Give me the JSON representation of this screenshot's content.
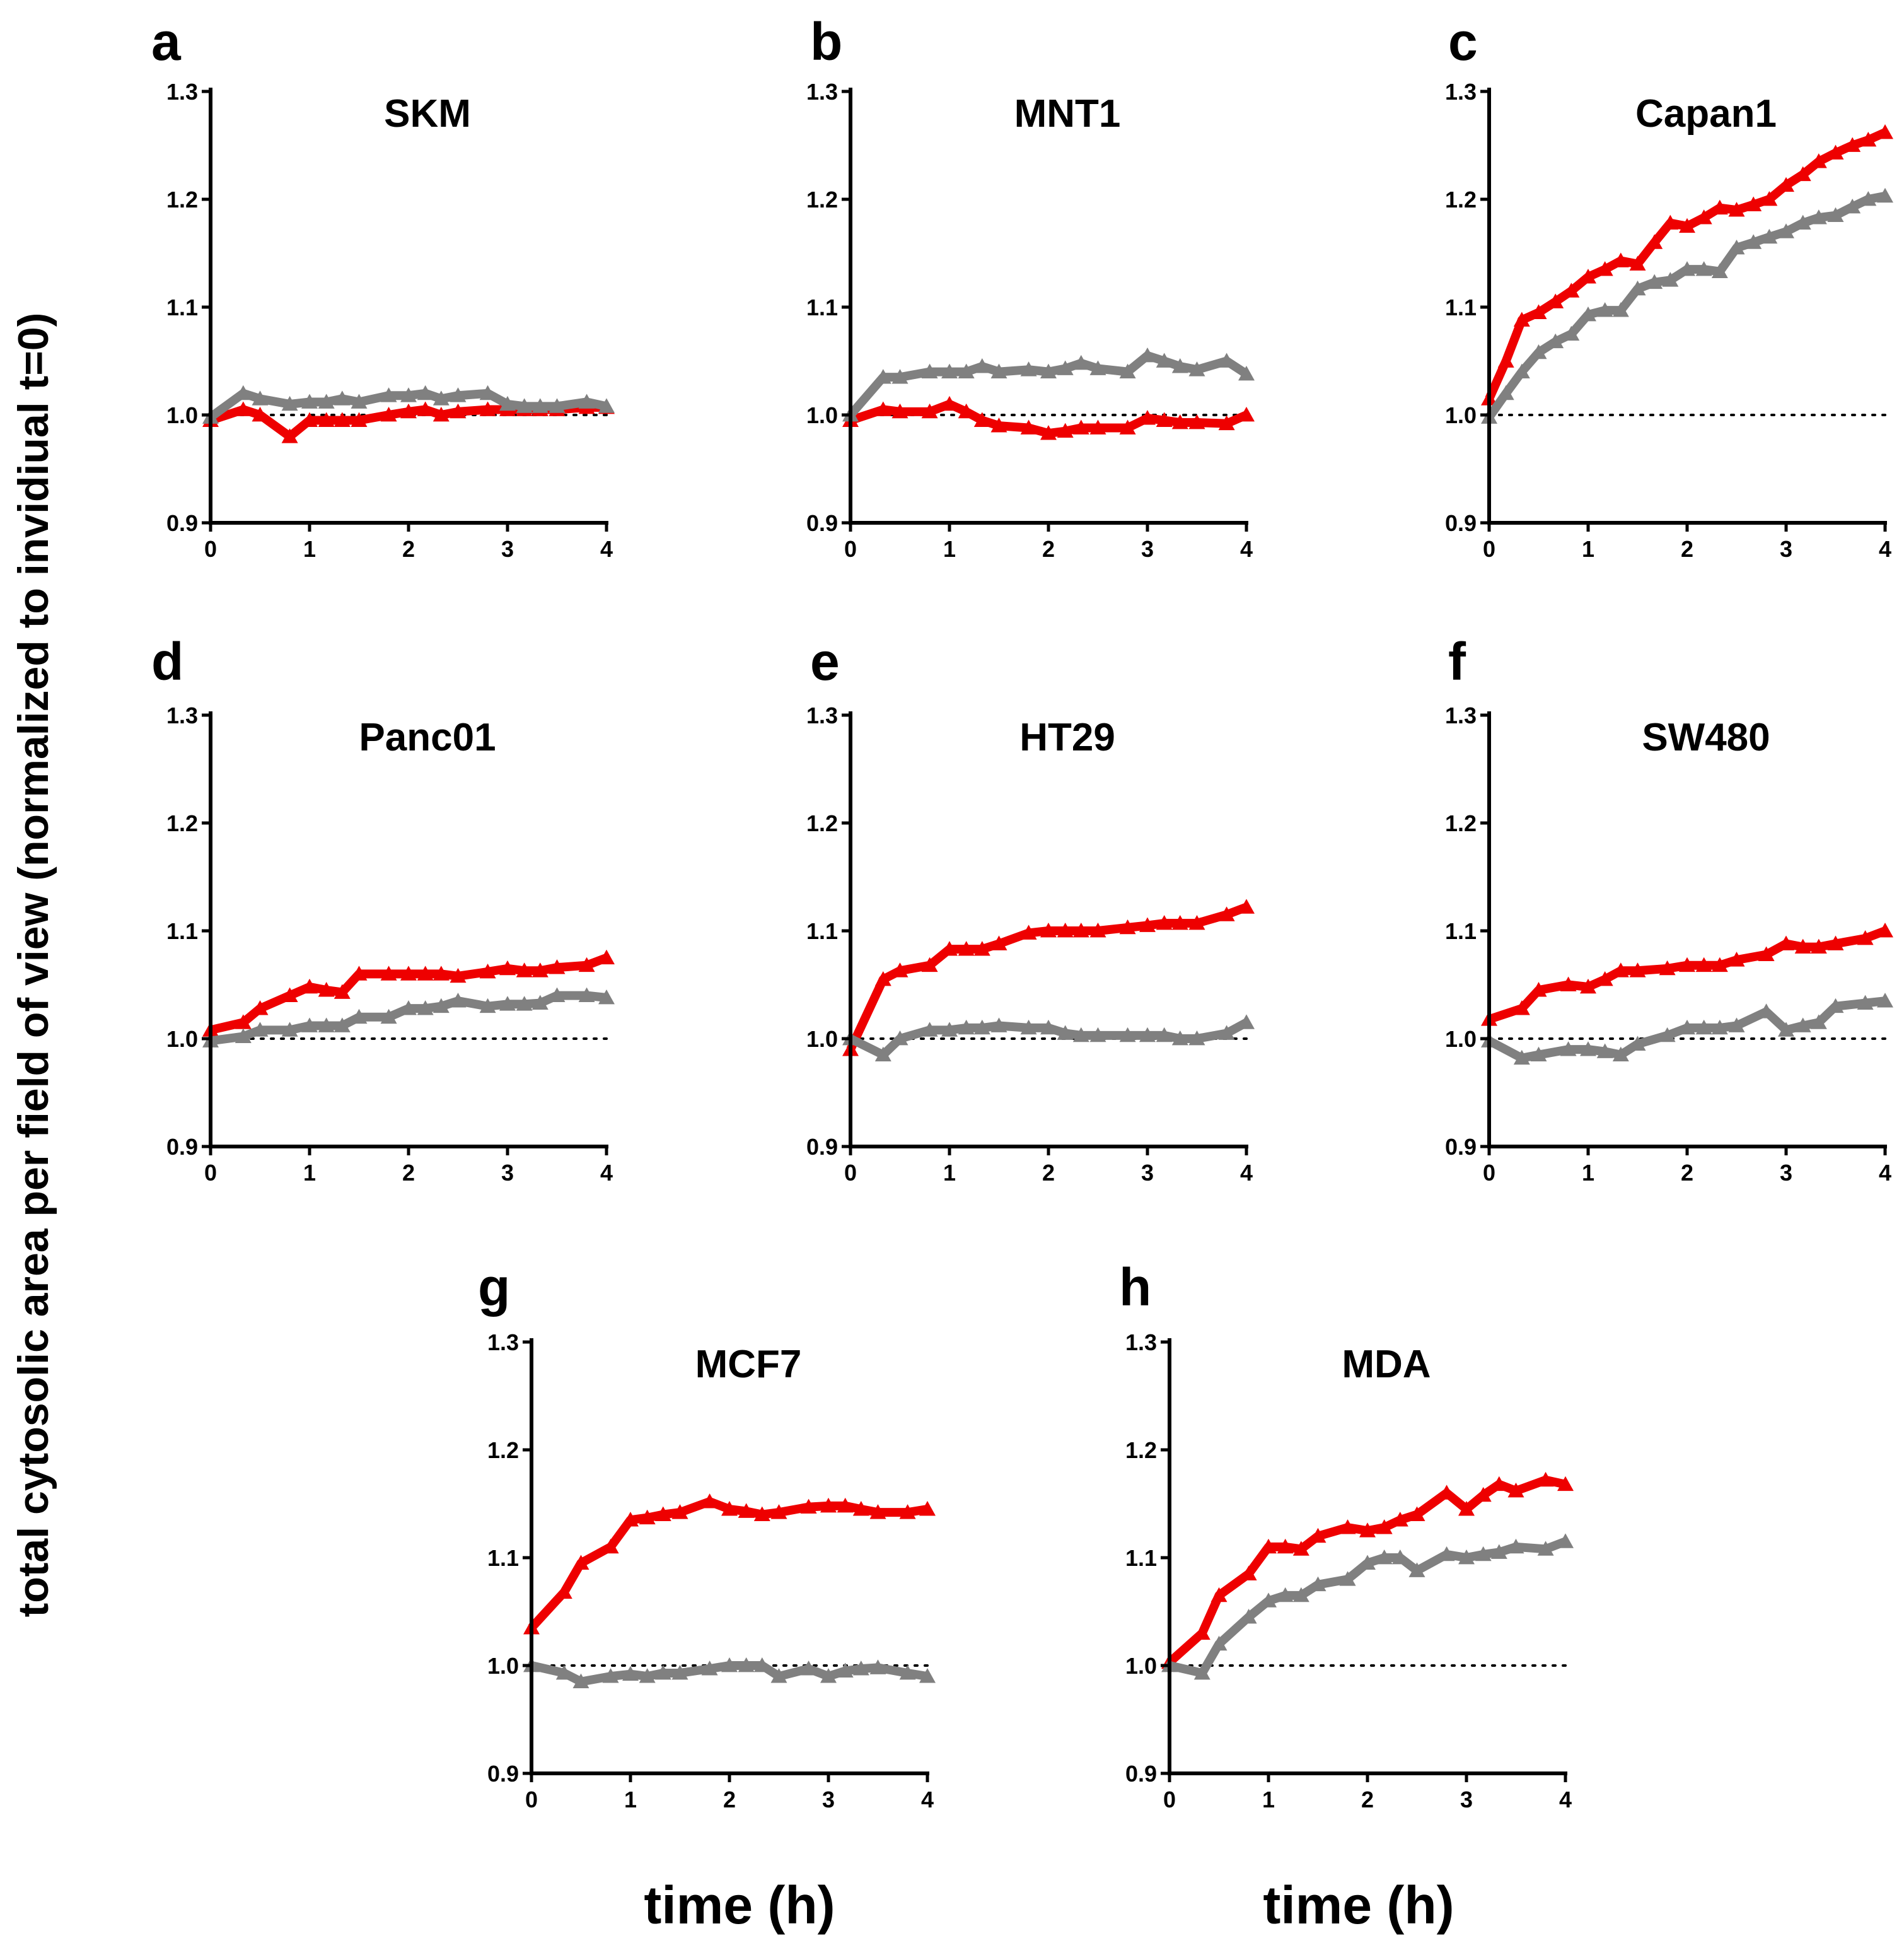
{
  "figure": {
    "ylabel": "total cytosolic area per field of view (normalized to invidiual t=0)",
    "xlabel_left": "time (h)",
    "xlabel_right": "time (h)",
    "colors": {
      "red": "#ee0000",
      "gray": "#808080",
      "axis": "#000000"
    }
  },
  "chart_data": [
    {
      "type": "line",
      "letter": "a",
      "title": "SKM",
      "xlim": [
        0,
        4
      ],
      "ylim": [
        0.9,
        1.3
      ],
      "xticks": [
        "0",
        "1",
        "2",
        "3",
        "4"
      ],
      "yticks": [
        "0.9",
        "1.0",
        "1.1",
        "1.2",
        "1.3"
      ],
      "reference_line": 1.0,
      "x": [
        0,
        0.33,
        0.5,
        0.8,
        1.0,
        1.17,
        1.33,
        1.5,
        1.8,
        2.0,
        2.17,
        2.33,
        2.5,
        2.8,
        3.0,
        3.17,
        3.33,
        3.5,
        3.8,
        4.0
      ],
      "series": [
        {
          "name": "red",
          "values": [
            0.995,
            1.005,
            1.0,
            0.98,
            0.995,
            0.995,
            0.995,
            0.995,
            1.0,
            1.003,
            1.005,
            1.0,
            1.003,
            1.005,
            1.005,
            1.005,
            1.005,
            1.005,
            1.007,
            1.007
          ]
        },
        {
          "name": "gray",
          "values": [
            0.998,
            1.02,
            1.015,
            1.01,
            1.012,
            1.012,
            1.015,
            1.012,
            1.018,
            1.018,
            1.02,
            1.015,
            1.018,
            1.02,
            1.01,
            1.008,
            1.008,
            1.008,
            1.012,
            1.008
          ]
        }
      ]
    },
    {
      "type": "line",
      "letter": "b",
      "title": "MNT1",
      "xlim": [
        0,
        4
      ],
      "ylim": [
        0.9,
        1.3
      ],
      "xticks": [
        "0",
        "1",
        "2",
        "3",
        "4"
      ],
      "yticks": [
        "0.9",
        "1.0",
        "1.1",
        "1.2",
        "1.3"
      ],
      "reference_line": 1.0,
      "x": [
        0,
        0.33,
        0.5,
        0.8,
        1.0,
        1.17,
        1.33,
        1.5,
        1.8,
        2.0,
        2.17,
        2.33,
        2.5,
        2.8,
        3.0,
        3.17,
        3.33,
        3.5,
        3.8,
        4.0
      ],
      "series": [
        {
          "name": "red",
          "values": [
            0.995,
            1.005,
            1.003,
            1.003,
            1.01,
            1.003,
            0.995,
            0.99,
            0.988,
            0.983,
            0.985,
            0.988,
            0.988,
            0.988,
            0.997,
            0.995,
            0.993,
            0.993,
            0.992,
            1.0
          ]
        },
        {
          "name": "gray",
          "values": [
            1.0,
            1.035,
            1.035,
            1.04,
            1.04,
            1.04,
            1.045,
            1.04,
            1.042,
            1.04,
            1.043,
            1.048,
            1.043,
            1.04,
            1.055,
            1.05,
            1.045,
            1.042,
            1.05,
            1.038
          ]
        }
      ]
    },
    {
      "type": "line",
      "letter": "c",
      "title": "Capan1",
      "xlim": [
        0,
        4
      ],
      "ylim": [
        0.9,
        1.3
      ],
      "xticks": [
        "0",
        "1",
        "2",
        "3",
        "4"
      ],
      "yticks": [
        "0.9",
        "1.0",
        "1.1",
        "1.2",
        "1.3"
      ],
      "reference_line": 1.0,
      "x": [
        0,
        0.17,
        0.33,
        0.5,
        0.67,
        0.83,
        1.0,
        1.17,
        1.33,
        1.5,
        1.67,
        1.83,
        2.0,
        2.17,
        2.33,
        2.5,
        2.67,
        2.83,
        3.0,
        3.17,
        3.33,
        3.5,
        3.67,
        3.83,
        4.0
      ],
      "series": [
        {
          "name": "red",
          "values": [
            1.015,
            1.05,
            1.088,
            1.095,
            1.105,
            1.115,
            1.128,
            1.135,
            1.143,
            1.14,
            1.16,
            1.178,
            1.175,
            1.183,
            1.192,
            1.19,
            1.195,
            1.2,
            1.213,
            1.223,
            1.235,
            1.243,
            1.25,
            1.255,
            1.262
          ]
        },
        {
          "name": "gray",
          "values": [
            0.998,
            1.02,
            1.04,
            1.058,
            1.068,
            1.075,
            1.093,
            1.097,
            1.097,
            1.117,
            1.123,
            1.125,
            1.135,
            1.135,
            1.133,
            1.155,
            1.16,
            1.165,
            1.17,
            1.178,
            1.183,
            1.185,
            1.193,
            1.2,
            1.203
          ]
        }
      ]
    },
    {
      "type": "line",
      "letter": "d",
      "title": "Panc01",
      "xlim": [
        0,
        4
      ],
      "ylim": [
        0.9,
        1.3
      ],
      "xticks": [
        "0",
        "1",
        "2",
        "3",
        "4"
      ],
      "yticks": [
        "0.9",
        "1.0",
        "1.1",
        "1.2",
        "1.3"
      ],
      "reference_line": 1.0,
      "x": [
        0,
        0.33,
        0.5,
        0.8,
        1.0,
        1.17,
        1.33,
        1.5,
        1.8,
        2.0,
        2.17,
        2.33,
        2.5,
        2.8,
        3.0,
        3.17,
        3.33,
        3.5,
        3.8,
        4.0
      ],
      "series": [
        {
          "name": "red",
          "values": [
            1.008,
            1.015,
            1.028,
            1.04,
            1.048,
            1.045,
            1.043,
            1.06,
            1.06,
            1.06,
            1.06,
            1.06,
            1.058,
            1.062,
            1.065,
            1.063,
            1.063,
            1.066,
            1.068,
            1.075
          ]
        },
        {
          "name": "gray",
          "values": [
            0.998,
            1.002,
            1.008,
            1.008,
            1.012,
            1.012,
            1.012,
            1.02,
            1.02,
            1.028,
            1.028,
            1.03,
            1.035,
            1.03,
            1.032,
            1.032,
            1.033,
            1.04,
            1.04,
            1.038
          ]
        }
      ]
    },
    {
      "type": "line",
      "letter": "e",
      "title": "HT29",
      "xlim": [
        0,
        4
      ],
      "ylim": [
        0.9,
        1.3
      ],
      "xticks": [
        "0",
        "1",
        "2",
        "3",
        "4"
      ],
      "yticks": [
        "0.9",
        "1.0",
        "1.1",
        "1.2",
        "1.3"
      ],
      "reference_line": 1.0,
      "x": [
        0,
        0.33,
        0.5,
        0.8,
        1.0,
        1.17,
        1.33,
        1.5,
        1.8,
        2.0,
        2.17,
        2.33,
        2.5,
        2.8,
        3.0,
        3.17,
        3.33,
        3.5,
        3.8,
        4.0
      ],
      "series": [
        {
          "name": "red",
          "values": [
            0.99,
            1.055,
            1.063,
            1.068,
            1.083,
            1.083,
            1.083,
            1.088,
            1.098,
            1.1,
            1.1,
            1.1,
            1.1,
            1.103,
            1.105,
            1.107,
            1.107,
            1.107,
            1.115,
            1.122
          ]
        },
        {
          "name": "gray",
          "values": [
            1.0,
            0.985,
            1.0,
            1.008,
            1.008,
            1.01,
            1.01,
            1.012,
            1.01,
            1.01,
            1.005,
            1.003,
            1.003,
            1.003,
            1.003,
            1.003,
            1.0,
            1.0,
            1.005,
            1.015
          ]
        }
      ]
    },
    {
      "type": "line",
      "letter": "f",
      "title": "SW480",
      "xlim": [
        0,
        4
      ],
      "ylim": [
        0.9,
        1.3
      ],
      "xticks": [
        "0",
        "1",
        "2",
        "3",
        "4"
      ],
      "yticks": [
        "0.9",
        "1.0",
        "1.1",
        "1.2",
        "1.3"
      ],
      "reference_line": 1.0,
      "x": [
        0,
        0.33,
        0.5,
        0.8,
        1.0,
        1.17,
        1.33,
        1.5,
        1.8,
        2.0,
        2.17,
        2.33,
        2.5,
        2.8,
        3.0,
        3.17,
        3.33,
        3.5,
        3.8,
        4.0
      ],
      "series": [
        {
          "name": "red",
          "values": [
            1.018,
            1.028,
            1.045,
            1.05,
            1.048,
            1.055,
            1.063,
            1.063,
            1.065,
            1.068,
            1.068,
            1.068,
            1.073,
            1.078,
            1.088,
            1.085,
            1.085,
            1.088,
            1.093,
            1.1
          ]
        },
        {
          "name": "gray",
          "values": [
            0.998,
            0.982,
            0.985,
            0.99,
            0.99,
            0.988,
            0.985,
            0.995,
            1.003,
            1.01,
            1.01,
            1.01,
            1.012,
            1.025,
            1.008,
            1.012,
            1.015,
            1.03,
            1.033,
            1.035
          ]
        }
      ]
    },
    {
      "type": "line",
      "letter": "g",
      "title": "MCF7",
      "xlim": [
        0,
        4
      ],
      "ylim": [
        0.9,
        1.3
      ],
      "xticks": [
        "0",
        "1",
        "2",
        "3",
        "4"
      ],
      "yticks": [
        "0.9",
        "1.0",
        "1.1",
        "1.2",
        "1.3"
      ],
      "reference_line": 1.0,
      "x": [
        0,
        0.33,
        0.5,
        0.8,
        1.0,
        1.17,
        1.33,
        1.5,
        1.8,
        2.0,
        2.17,
        2.33,
        2.5,
        2.8,
        3.0,
        3.17,
        3.33,
        3.5,
        3.8,
        4.0
      ],
      "series": [
        {
          "name": "red",
          "values": [
            1.035,
            1.068,
            1.095,
            1.11,
            1.135,
            1.137,
            1.14,
            1.142,
            1.152,
            1.145,
            1.143,
            1.14,
            1.142,
            1.147,
            1.148,
            1.148,
            1.145,
            1.142,
            1.142,
            1.145
          ]
        },
        {
          "name": "gray",
          "values": [
            1.0,
            0.993,
            0.985,
            0.99,
            0.992,
            0.99,
            0.993,
            0.993,
            0.997,
            1.0,
            1.0,
            1.0,
            0.99,
            0.997,
            0.99,
            0.995,
            0.997,
            0.998,
            0.993,
            0.99
          ]
        }
      ]
    },
    {
      "type": "line",
      "letter": "h",
      "title": "MDA",
      "xlim": [
        0,
        4
      ],
      "ylim": [
        0.9,
        1.3
      ],
      "xticks": [
        "0",
        "1",
        "2",
        "3",
        "4"
      ],
      "yticks": [
        "0.9",
        "1.0",
        "1.1",
        "1.2",
        "1.3"
      ],
      "reference_line": 1.0,
      "x": [
        0,
        0.33,
        0.5,
        0.8,
        1.0,
        1.17,
        1.33,
        1.5,
        1.8,
        2.0,
        2.17,
        2.33,
        2.5,
        2.8,
        3.0,
        3.17,
        3.33,
        3.5,
        3.8,
        4.0
      ],
      "series": [
        {
          "name": "red",
          "values": [
            1.003,
            1.03,
            1.065,
            1.085,
            1.11,
            1.11,
            1.108,
            1.12,
            1.128,
            1.125,
            1.128,
            1.135,
            1.14,
            1.16,
            1.145,
            1.158,
            1.168,
            1.162,
            1.172,
            1.168
          ]
        },
        {
          "name": "gray",
          "values": [
            1.0,
            0.993,
            1.02,
            1.045,
            1.06,
            1.065,
            1.065,
            1.075,
            1.08,
            1.095,
            1.1,
            1.1,
            1.088,
            1.103,
            1.1,
            1.103,
            1.105,
            1.11,
            1.108,
            1.115
          ]
        }
      ]
    }
  ]
}
